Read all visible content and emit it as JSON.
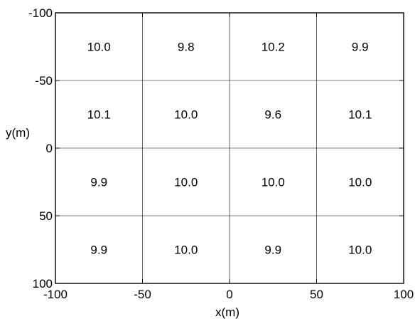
{
  "chart_data": {
    "type": "heatmap",
    "xlabel": "x(m)",
    "ylabel": "y(m)",
    "xlim": [
      -100,
      100
    ],
    "ylim": [
      -100,
      100
    ],
    "y_inverted": true,
    "grid": true,
    "x_ticks": [
      "-100",
      "-50",
      "0",
      "50",
      "100"
    ],
    "y_ticks": [
      "-100",
      "-50",
      "0",
      "50",
      "100"
    ],
    "x_tick_values": [
      -100,
      -50,
      0,
      50,
      100
    ],
    "y_tick_values": [
      -100,
      -50,
      0,
      50,
      100
    ],
    "cells": [
      {
        "x": -75,
        "y": -75,
        "value": "10.0"
      },
      {
        "x": -25,
        "y": -75,
        "value": "9.8"
      },
      {
        "x": 25,
        "y": -75,
        "value": "10.2"
      },
      {
        "x": 75,
        "y": -75,
        "value": "9.9"
      },
      {
        "x": -75,
        "y": -25,
        "value": "10.1"
      },
      {
        "x": -25,
        "y": -25,
        "value": "10.0"
      },
      {
        "x": 25,
        "y": -25,
        "value": "9.6"
      },
      {
        "x": 75,
        "y": -25,
        "value": "10.1"
      },
      {
        "x": -75,
        "y": 25,
        "value": "9.9"
      },
      {
        "x": -25,
        "y": 25,
        "value": "10.0"
      },
      {
        "x": 25,
        "y": 25,
        "value": "10.0"
      },
      {
        "x": 75,
        "y": 25,
        "value": "10.0"
      },
      {
        "x": -75,
        "y": 75,
        "value": "9.9"
      },
      {
        "x": -25,
        "y": 75,
        "value": "10.0"
      },
      {
        "x": 25,
        "y": 75,
        "value": "9.9"
      },
      {
        "x": 75,
        "y": 75,
        "value": "10.0"
      }
    ]
  }
}
